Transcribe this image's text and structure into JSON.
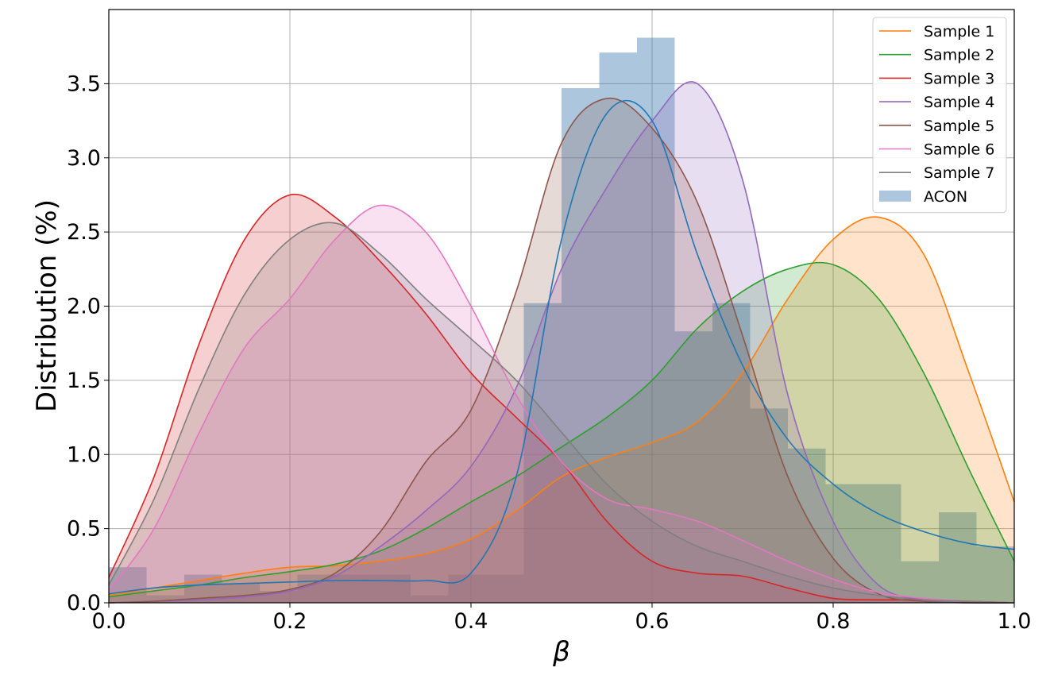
{
  "chart_data": {
    "type": "area",
    "title": "",
    "xlabel": "β",
    "ylabel": "Distribution (%)",
    "xlim": [
      0.0,
      1.0
    ],
    "ylim": [
      0.0,
      4.0
    ],
    "grid": true,
    "legend_position": "top-right",
    "x_ticks": [
      "0.0",
      "0.2",
      "0.4",
      "0.6",
      "0.8",
      "1.0"
    ],
    "y_ticks": [
      "0.0",
      "0.5",
      "1.0",
      "1.5",
      "2.0",
      "2.5",
      "3.0",
      "3.5"
    ],
    "x": [
      0.0,
      0.05,
      0.1,
      0.15,
      0.2,
      0.25,
      0.3,
      0.35,
      0.4,
      0.45,
      0.5,
      0.55,
      0.6,
      0.65,
      0.7,
      0.75,
      0.8,
      0.85,
      0.9,
      0.95,
      1.0
    ],
    "series": [
      {
        "name": "Sample 1",
        "color": "#ff7f0e",
        "fill": true,
        "values": [
          0.05,
          0.1,
          0.15,
          0.2,
          0.24,
          0.25,
          0.28,
          0.33,
          0.43,
          0.62,
          0.85,
          0.98,
          1.08,
          1.22,
          1.55,
          2.05,
          2.45,
          2.6,
          2.35,
          1.55,
          0.68
        ]
      },
      {
        "name": "Sample 2",
        "color": "#2ca02c",
        "fill": true,
        "values": [
          0.04,
          0.08,
          0.12,
          0.17,
          0.21,
          0.26,
          0.35,
          0.5,
          0.68,
          0.85,
          1.05,
          1.25,
          1.5,
          1.85,
          2.1,
          2.25,
          2.28,
          2.05,
          1.55,
          0.9,
          0.28
        ]
      },
      {
        "name": "Sample 3",
        "color": "#d62728",
        "fill": true,
        "values": [
          0.17,
          0.85,
          1.75,
          2.45,
          2.75,
          2.6,
          2.3,
          1.95,
          1.55,
          1.25,
          0.95,
          0.55,
          0.28,
          0.2,
          0.18,
          0.1,
          0.03,
          0.02,
          0.02,
          0.01,
          0.0
        ]
      },
      {
        "name": "Sample 4",
        "color": "#9467bd",
        "fill": true,
        "values": [
          0.0,
          0.01,
          0.02,
          0.04,
          0.08,
          0.18,
          0.38,
          0.62,
          0.92,
          1.45,
          2.25,
          2.8,
          3.25,
          3.5,
          2.85,
          1.4,
          0.55,
          0.12,
          0.02,
          0.0,
          0.0
        ]
      },
      {
        "name": "Sample 5",
        "color": "#8c564b",
        "fill": true,
        "values": [
          0.0,
          0.01,
          0.03,
          0.05,
          0.09,
          0.2,
          0.48,
          0.95,
          1.3,
          2.1,
          3.1,
          3.4,
          3.2,
          2.7,
          1.8,
          0.85,
          0.3,
          0.06,
          0.01,
          0.0,
          0.0
        ]
      },
      {
        "name": "Sample 6",
        "color": "#e377c2",
        "fill": true,
        "values": [
          0.08,
          0.5,
          1.15,
          1.72,
          2.05,
          2.45,
          2.68,
          2.5,
          2.0,
          1.4,
          0.95,
          0.7,
          0.63,
          0.55,
          0.42,
          0.28,
          0.16,
          0.07,
          0.03,
          0.01,
          0.0
        ]
      },
      {
        "name": "Sample 7",
        "color": "#7f7f7f",
        "fill": true,
        "values": [
          0.12,
          0.7,
          1.45,
          2.08,
          2.45,
          2.56,
          2.35,
          2.05,
          1.78,
          1.5,
          1.15,
          0.8,
          0.55,
          0.38,
          0.28,
          0.18,
          0.1,
          0.05,
          0.02,
          0.01,
          0.0
        ]
      },
      {
        "name": "",
        "color": "#1f77b4",
        "fill": false,
        "values": [
          0.06,
          0.1,
          0.12,
          0.13,
          0.14,
          0.15,
          0.15,
          0.15,
          0.2,
          0.85,
          2.45,
          3.3,
          3.25,
          2.35,
          1.6,
          1.1,
          0.8,
          0.6,
          0.48,
          0.4,
          0.36
        ]
      }
    ],
    "histogram": {
      "name": "ACON",
      "color": "#4682b4",
      "bin_edges": [
        0.0,
        0.0417,
        0.0833,
        0.125,
        0.1667,
        0.2083,
        0.25,
        0.2917,
        0.3333,
        0.375,
        0.4167,
        0.4583,
        0.5,
        0.5417,
        0.5833,
        0.625,
        0.6667,
        0.7083,
        0.75,
        0.7917,
        0.8333,
        0.875,
        0.9167,
        0.9583,
        1.0
      ],
      "values": [
        0.24,
        0.05,
        0.19,
        0.13,
        0.08,
        0.19,
        0.19,
        0.19,
        0.05,
        0.19,
        0.19,
        2.02,
        3.47,
        3.71,
        3.81,
        1.83,
        2.02,
        1.31,
        1.04,
        0.8,
        0.8,
        0.28,
        0.61,
        0.38
      ]
    }
  }
}
